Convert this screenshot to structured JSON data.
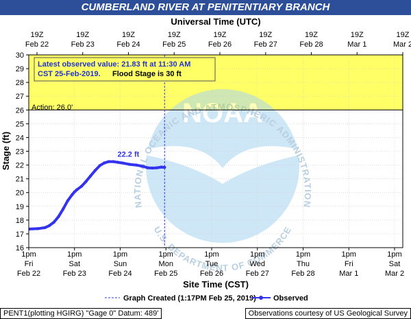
{
  "header": {
    "title": "CUMBERLAND RIVER AT PENITENTIARY BRANCH"
  },
  "chart_data": {
    "type": "line",
    "title": "CUMBERLAND RIVER AT PENITENTIARY BRANCH",
    "top_axis_label": "Universal Time (UTC)",
    "xlabel": "Site Time (CST)",
    "ylabel": "Stage (ft)",
    "ylim": [
      16,
      30
    ],
    "yticks": [
      16,
      17,
      18,
      19,
      20,
      21,
      22,
      23,
      24,
      25,
      26,
      27,
      28,
      29,
      30
    ],
    "grid": true,
    "bottom_ticks": [
      {
        "t1": "1pm",
        "t2": "Fri",
        "t3": "Feb 22"
      },
      {
        "t1": "1pm",
        "t2": "Sat",
        "t3": "Feb 23"
      },
      {
        "t1": "1pm",
        "t2": "Sun",
        "t3": "Feb 24"
      },
      {
        "t1": "1pm",
        "t2": "Mon",
        "t3": "Feb 25"
      },
      {
        "t1": "1pm",
        "t2": "Tue",
        "t3": "Feb 26"
      },
      {
        "t1": "1pm",
        "t2": "Wed",
        "t3": "Feb 27"
      },
      {
        "t1": "1pm",
        "t2": "Thu",
        "t3": "Feb 28"
      },
      {
        "t1": "1pm",
        "t2": "Fri",
        "t3": "Mar  1"
      },
      {
        "t1": "1pm",
        "t2": "Sat",
        "t3": "Mar  2"
      }
    ],
    "top_ticks": [
      {
        "t1": "19Z",
        "t2": "Feb 22"
      },
      {
        "t1": "19Z",
        "t2": "Feb 23"
      },
      {
        "t1": "19Z",
        "t2": "Feb 24"
      },
      {
        "t1": "19Z",
        "t2": "Feb 25"
      },
      {
        "t1": "19Z",
        "t2": "Feb 26"
      },
      {
        "t1": "19Z",
        "t2": "Feb 27"
      },
      {
        "t1": "19Z",
        "t2": "Feb 28"
      },
      {
        "t1": "19Z",
        "t2": "Mar  1"
      },
      {
        "t1": "19Z",
        "t2": "Mar  2"
      }
    ],
    "action_stage": 26.0,
    "action_label": "Action:  26.0'",
    "flood_stage": 30,
    "flood_zone_color": "#ffff66",
    "series": [
      {
        "name": "Observed",
        "color": "#3333ee",
        "x_days": [
          0,
          0.2,
          0.35,
          0.45,
          0.55,
          0.65,
          0.75,
          0.85,
          0.95,
          1.0,
          1.05,
          1.15,
          1.25,
          1.35,
          1.45,
          1.55,
          1.65,
          1.75,
          1.85,
          1.95,
          2.05,
          2.2,
          2.35,
          2.5,
          2.6,
          2.7,
          2.8,
          2.9,
          2.97
        ],
        "y": [
          17.35,
          17.38,
          17.45,
          17.6,
          17.85,
          18.25,
          18.8,
          19.4,
          19.85,
          20.05,
          20.2,
          20.45,
          20.8,
          21.2,
          21.6,
          21.95,
          22.15,
          22.25,
          22.25,
          22.2,
          22.15,
          22.05,
          22.0,
          21.9,
          21.8,
          21.78,
          21.8,
          21.85,
          21.83
        ]
      }
    ],
    "max_label": "22.2 ft",
    "max_point": {
      "x_day": 1.85,
      "y": 22.25
    },
    "info_box": {
      "line1": "Latest observed value: 21.83  ft at 11:30 AM",
      "line2a": "CST 25-Feb-2019.",
      "line2b": "Flood Stage is 30 ft"
    },
    "graph_created_day": 2.97,
    "legend": {
      "created_label": "Graph Created (1:17PM Feb 25, 2019)",
      "observed_label": "Observed"
    },
    "watermark": {
      "logo_text": "NOAA",
      "ring_top": "NATIONAL OCEANIC AND ATMOSPHERIC ADMINISTRATION",
      "ring_bottom": "U.S. DEPARTMENT OF COMMERCE"
    }
  },
  "footer": {
    "left": "PENT1(plotting HGIRG) \"Gage 0\" Datum: 489'",
    "right": "Observations courtesy of US Geological Survey"
  }
}
